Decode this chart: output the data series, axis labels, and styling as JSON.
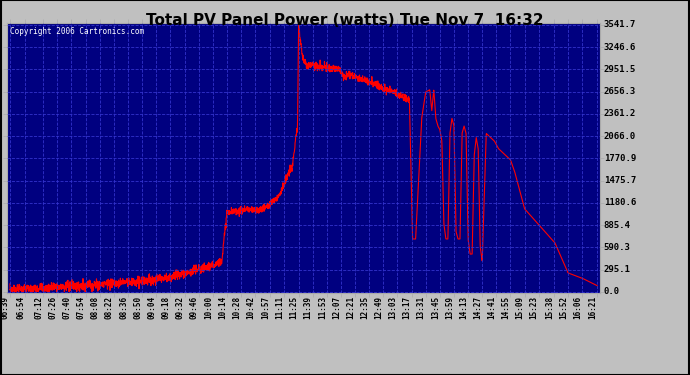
{
  "title": "Total PV Panel Power (watts) Tue Nov 7  16:32",
  "copyright": "Copyright 2006 Cartronics.com",
  "bg_color": "#000080",
  "line_color": "#FF0000",
  "grid_color": "#0000FF",
  "yticks": [
    0.0,
    295.1,
    590.3,
    885.4,
    1180.6,
    1475.7,
    1770.9,
    2066.0,
    2361.2,
    2656.3,
    2951.5,
    3246.6,
    3541.7
  ],
  "ymax": 3541.7,
  "ymin": 0.0,
  "xtick_labels": [
    "06:39",
    "06:54",
    "07:12",
    "07:26",
    "07:40",
    "07:54",
    "08:08",
    "08:22",
    "08:36",
    "08:50",
    "09:04",
    "09:18",
    "09:32",
    "09:46",
    "10:00",
    "10:14",
    "10:28",
    "10:42",
    "10:57",
    "11:11",
    "11:25",
    "11:39",
    "11:53",
    "12:07",
    "12:21",
    "12:35",
    "12:49",
    "13:03",
    "13:17",
    "13:31",
    "13:45",
    "13:59",
    "14:13",
    "14:27",
    "14:41",
    "14:55",
    "15:09",
    "15:23",
    "15:38",
    "15:52",
    "16:06",
    "16:21"
  ],
  "xtick_minutes": [
    0,
    15,
    33,
    47,
    61,
    75,
    89,
    103,
    117,
    131,
    145,
    159,
    173,
    187,
    201,
    215,
    229,
    243,
    258,
    272,
    286,
    300,
    314,
    328,
    342,
    356,
    370,
    384,
    398,
    412,
    426,
    440,
    454,
    468,
    482,
    496,
    510,
    524,
    539,
    553,
    567,
    582
  ]
}
